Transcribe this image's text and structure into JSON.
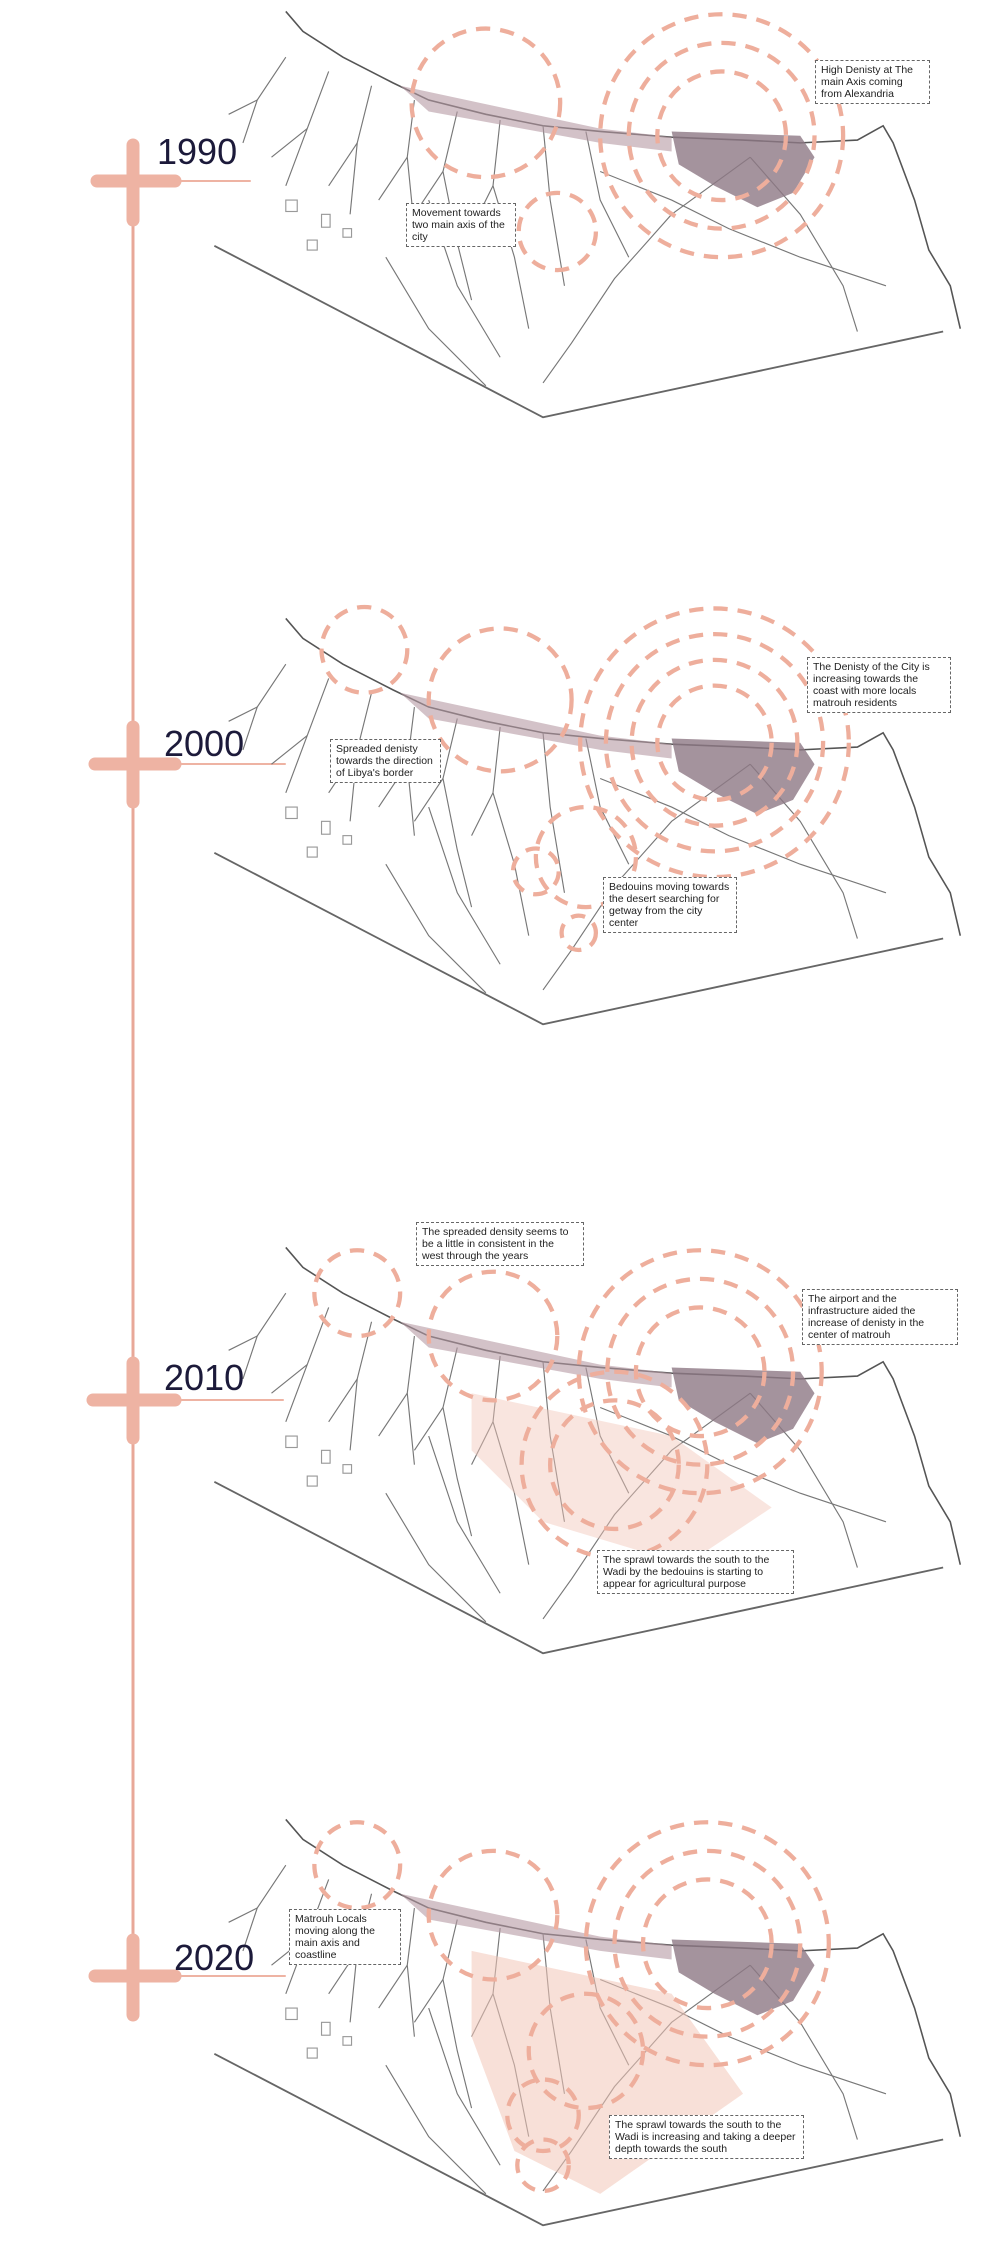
{
  "timeline": [
    {
      "year": "1990",
      "notes": [
        "High Denisty at The main Axis coming from Alexandria",
        "Movement towards two main axis of the city"
      ]
    },
    {
      "year": "2000",
      "notes": [
        "The Denisty of the City is increasing towards the coast with more locals matrouh residents",
        "Spreaded denisty towards the direction of Libya's border",
        "Bedouins moving towards the desert searching for getway from the city center"
      ]
    },
    {
      "year": "2010",
      "notes": [
        "The spreaded density seems to be a little in consistent in the west through the years",
        "The airport and the infrastructure aided the increase of denisty in the center of matrouh",
        "The sprawl towards the south to the Wadi by the bedouins is starting to appear for agricultural purpose"
      ]
    },
    {
      "year": "2020",
      "notes": [
        "Matrouh Locals moving along the main axis and coastline",
        "The sprawl towards the south to the Wadi is increasing and taking a deeper depth towards the south"
      ]
    }
  ]
}
